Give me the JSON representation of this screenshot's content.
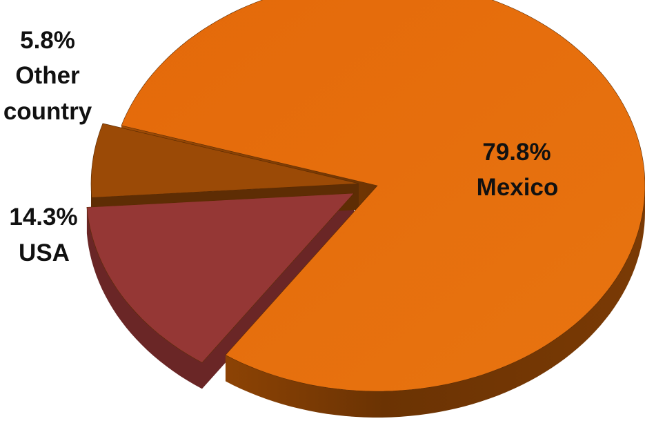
{
  "chart_data": {
    "type": "pie",
    "style": "3d-exploded",
    "categories": [
      "Mexico",
      "USA",
      "Other country"
    ],
    "values": [
      79.8,
      14.3,
      5.8
    ],
    "data_labels": [
      {
        "value_text": "79.8%",
        "name_text": "Mexico"
      },
      {
        "value_text": "14.3%",
        "name_text": "USA"
      },
      {
        "value_text": "5.8%",
        "name_text": "Other",
        "name_text_2": "country"
      }
    ],
    "colors": {
      "Mexico": "#e46c0a",
      "USA": "#953735",
      "Other country": "#9b4a06"
    },
    "side_colors": {
      "Mexico": "#7a3a05",
      "USA": "#6a2626",
      "Other country": "#5e2d04"
    },
    "legend": "none",
    "grid": false
  }
}
